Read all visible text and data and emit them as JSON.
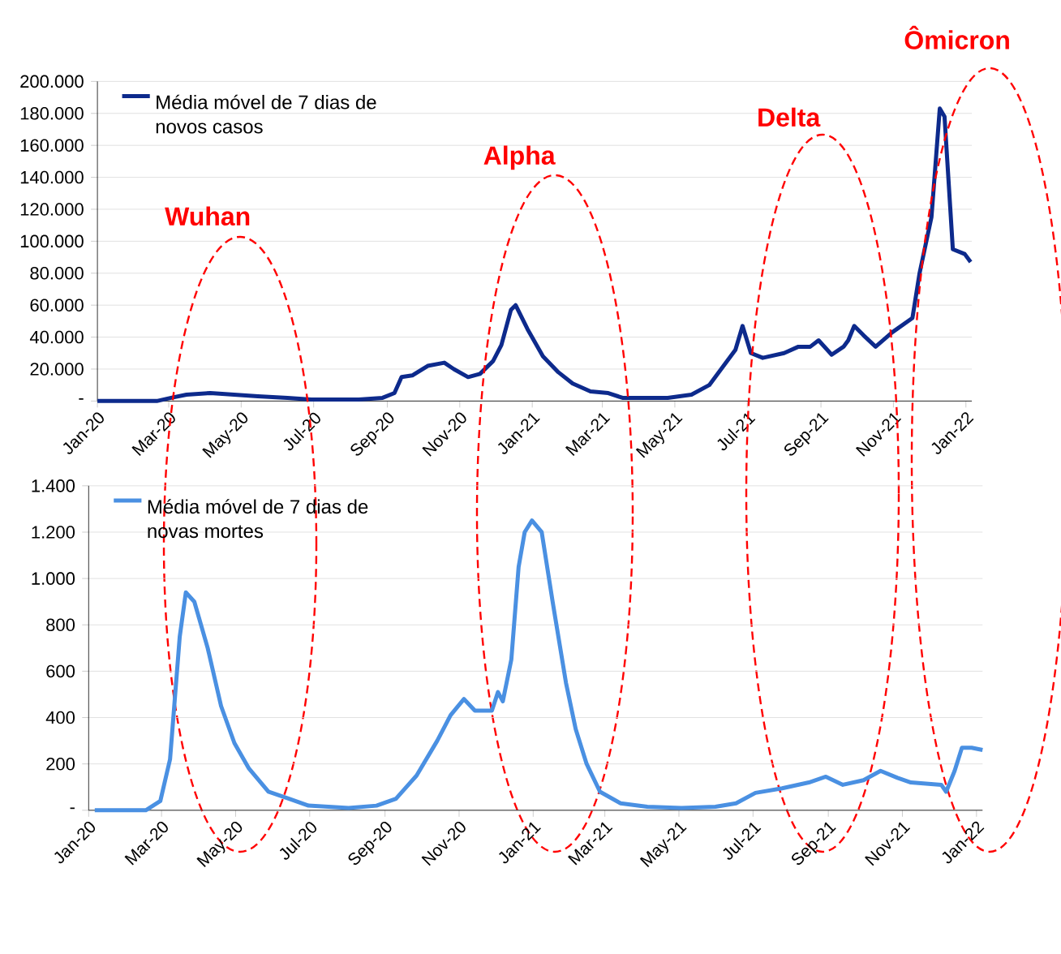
{
  "chart_data": [
    {
      "type": "line",
      "grid": "y",
      "legend": "top left",
      "xlim": [
        "2020-01-01",
        "2022-01-06"
      ],
      "xticks": [
        {
          "value": "2020-01-01",
          "label": "Jan-20"
        },
        {
          "value": "2020-03-01",
          "label": "Mar-20"
        },
        {
          "value": "2020-05-01",
          "label": "May-20"
        },
        {
          "value": "2020-07-01",
          "label": "Jul-20"
        },
        {
          "value": "2020-09-01",
          "label": "Sep-20"
        },
        {
          "value": "2020-11-01",
          "label": "Nov-20"
        },
        {
          "value": "2021-01-01",
          "label": "Jan-21"
        },
        {
          "value": "2021-03-01",
          "label": "Mar-21"
        },
        {
          "value": "2021-05-01",
          "label": "May-21"
        },
        {
          "value": "2021-07-01",
          "label": "Jul-21"
        },
        {
          "value": "2021-09-01",
          "label": "Sep-21"
        },
        {
          "value": "2021-11-01",
          "label": "Nov-21"
        },
        {
          "value": "2022-01-01",
          "label": "Jan-22"
        }
      ],
      "ylim": [
        0,
        200000
      ],
      "yticks": [
        {
          "value": 0,
          "label": "-"
        },
        {
          "value": 20000,
          "label": "20.000"
        },
        {
          "value": 40000,
          "label": "40.000"
        },
        {
          "value": 60000,
          "label": "60.000"
        },
        {
          "value": 80000,
          "label": "80.000"
        },
        {
          "value": 100000,
          "label": "100.000"
        },
        {
          "value": 120000,
          "label": "120.000"
        },
        {
          "value": 140000,
          "label": "140.000"
        },
        {
          "value": 160000,
          "label": "160.000"
        },
        {
          "value": 180000,
          "label": "180.000"
        },
        {
          "value": 200000,
          "label": "200.000"
        }
      ],
      "annotations": [
        "Wuhan",
        "Alpha",
        "Delta",
        "Ômicron"
      ],
      "series": [
        {
          "name": "Média móvel de 7 dias de novos casos",
          "color": "#0d2a8c",
          "x": [
            "2020-01-01",
            "2020-02-20",
            "2020-03-03",
            "2020-03-16",
            "2020-04-05",
            "2020-04-25",
            "2020-05-15",
            "2020-06-09",
            "2020-06-29",
            "2020-08-08",
            "2020-08-28",
            "2020-09-07",
            "2020-09-13",
            "2020-09-22",
            "2020-10-05",
            "2020-10-19",
            "2020-10-27",
            "2020-11-08",
            "2020-11-18",
            "2020-11-29",
            "2020-12-06",
            "2020-12-14",
            "2020-12-18",
            "2020-12-28",
            "2021-01-10",
            "2021-01-23",
            "2021-02-04",
            "2021-02-19",
            "2021-03-06",
            "2021-03-18",
            "2021-04-25",
            "2021-05-15",
            "2021-05-30",
            "2021-06-11",
            "2021-06-21",
            "2021-06-27",
            "2021-07-04",
            "2021-07-14",
            "2021-08-01",
            "2021-08-13",
            "2021-08-23",
            "2021-08-30",
            "2021-09-10",
            "2021-09-20",
            "2021-09-24",
            "2021-09-29",
            "2021-10-07",
            "2021-10-17",
            "2021-10-31",
            "2021-11-17",
            "2021-11-23",
            "2021-12-03",
            "2021-12-10",
            "2021-12-14",
            "2021-12-21",
            "2021-12-31",
            "2022-01-05"
          ],
          "values": [
            0,
            0,
            2000,
            4000,
            5000,
            4000,
            3000,
            2000,
            1000,
            1000,
            2000,
            5000,
            15000,
            16000,
            22000,
            24000,
            20000,
            15000,
            17000,
            25000,
            35000,
            57000,
            60000,
            45000,
            28000,
            18000,
            11000,
            6000,
            5000,
            2000,
            2000,
            4000,
            10000,
            22000,
            32000,
            47000,
            30000,
            27000,
            30000,
            34000,
            34000,
            38000,
            29000,
            34000,
            38000,
            47000,
            41000,
            34000,
            43000,
            52000,
            80000,
            115000,
            183000,
            178000,
            95000,
            92000,
            87000
          ]
        }
      ]
    },
    {
      "type": "line",
      "grid": "y",
      "legend": "top left",
      "xlim": [
        "2020-01-01",
        "2022-01-06"
      ],
      "xticks": [
        {
          "value": "2020-01-01",
          "label": "Jan-20"
        },
        {
          "value": "2020-03-01",
          "label": "Mar-20"
        },
        {
          "value": "2020-05-01",
          "label": "May-20"
        },
        {
          "value": "2020-07-01",
          "label": "Jul-20"
        },
        {
          "value": "2020-09-01",
          "label": "Sep-20"
        },
        {
          "value": "2020-11-01",
          "label": "Nov-20"
        },
        {
          "value": "2021-01-01",
          "label": "Jan-21"
        },
        {
          "value": "2021-03-01",
          "label": "Mar-21"
        },
        {
          "value": "2021-05-01",
          "label": "May-21"
        },
        {
          "value": "2021-07-01",
          "label": "Jul-21"
        },
        {
          "value": "2021-09-01",
          "label": "Sep-21"
        },
        {
          "value": "2021-11-01",
          "label": "Nov-21"
        },
        {
          "value": "2022-01-01",
          "label": "Jan-22"
        }
      ],
      "ylim": [
        0,
        1400
      ],
      "yticks": [
        {
          "value": 0,
          "label": "-"
        },
        200,
        400,
        600,
        800,
        {
          "value": 1000,
          "label": "1.000"
        },
        {
          "value": 1200,
          "label": "1.200"
        },
        {
          "value": 1400,
          "label": "1.400"
        }
      ],
      "series": [
        {
          "name": "Média móvel de 7 dias de novas mortes",
          "color": "#4a90e2",
          "x": [
            "2020-01-06",
            "2020-02-17",
            "2020-02-29",
            "2020-03-08",
            "2020-03-16",
            "2020-03-21",
            "2020-03-28",
            "2020-04-08",
            "2020-04-19",
            "2020-04-30",
            "2020-05-12",
            "2020-05-28",
            "2020-06-14",
            "2020-06-30",
            "2020-08-02",
            "2020-08-25",
            "2020-09-10",
            "2020-09-27",
            "2020-10-14",
            "2020-10-25",
            "2020-11-05",
            "2020-11-14",
            "2020-11-28",
            "2020-12-03",
            "2020-12-07",
            "2020-12-14",
            "2020-12-20",
            "2020-12-25",
            "2020-12-31",
            "2021-01-08",
            "2021-01-17",
            "2021-01-28",
            "2021-02-05",
            "2021-02-14",
            "2021-02-25",
            "2021-03-14",
            "2021-04-05",
            "2021-05-03",
            "2021-05-31",
            "2021-06-17",
            "2021-07-03",
            "2021-07-25",
            "2021-08-16",
            "2021-08-30",
            "2021-09-13",
            "2021-09-30",
            "2021-10-14",
            "2021-10-28",
            "2021-11-08",
            "2021-12-03",
            "2021-12-07",
            "2021-12-14",
            "2021-12-20",
            "2021-12-28",
            "2022-01-06"
          ],
          "values": [
            0,
            0,
            40,
            220,
            750,
            940,
            900,
            700,
            450,
            290,
            180,
            80,
            50,
            20,
            10,
            20,
            50,
            150,
            300,
            410,
            480,
            430,
            430,
            510,
            470,
            650,
            1050,
            1200,
            1250,
            1200,
            900,
            550,
            350,
            200,
            80,
            30,
            15,
            10,
            15,
            30,
            75,
            95,
            120,
            145,
            110,
            130,
            170,
            140,
            120,
            110,
            80,
            170,
            270,
            270,
            260
          ]
        }
      ]
    }
  ]
}
